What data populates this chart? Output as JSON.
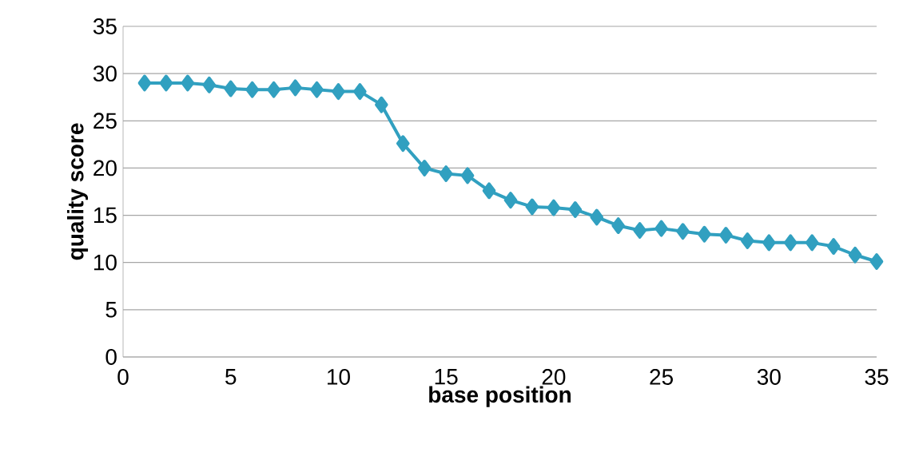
{
  "chart_data": {
    "type": "line",
    "xlabel": "base position",
    "ylabel": "quality score",
    "x": [
      1,
      2,
      3,
      4,
      5,
      6,
      7,
      8,
      9,
      10,
      11,
      12,
      13,
      14,
      15,
      16,
      17,
      18,
      19,
      20,
      21,
      22,
      23,
      24,
      25,
      26,
      27,
      28,
      29,
      30,
      31,
      32,
      33,
      34,
      35
    ],
    "series": [
      {
        "color": "#31a0c0",
        "values": [
          29.0,
          29.0,
          29.0,
          28.8,
          28.4,
          28.3,
          28.3,
          28.5,
          28.3,
          28.1,
          28.1,
          26.7,
          22.6,
          20.0,
          19.4,
          19.2,
          17.6,
          16.6,
          15.9,
          15.8,
          15.6,
          14.8,
          13.9,
          13.4,
          13.6,
          13.3,
          13.0,
          12.9,
          12.3,
          12.1,
          12.1,
          12.1,
          11.7,
          10.8,
          10.1
        ]
      }
    ],
    "xlim": [
      0,
      35
    ],
    "ylim": [
      0,
      35
    ],
    "xticks": [
      0,
      5,
      10,
      15,
      20,
      25,
      30,
      35
    ],
    "yticks": [
      0,
      5,
      10,
      15,
      20,
      25,
      30,
      35
    ],
    "grid": "y",
    "marker": "diamond",
    "line_style": "solid"
  }
}
